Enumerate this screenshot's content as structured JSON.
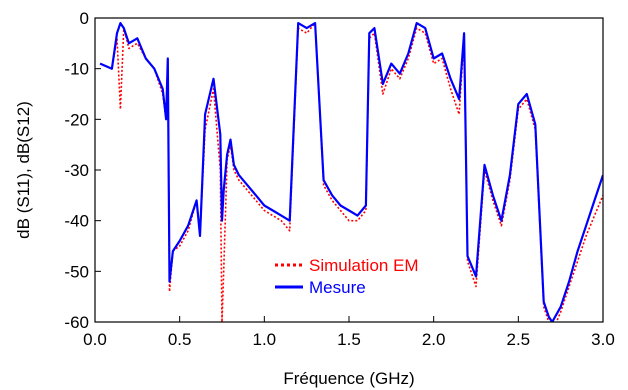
{
  "chart_data": {
    "type": "line",
    "title": "",
    "xlabel": "Fréquence (GHz)",
    "ylabel": "dB (S11), dB(S12)",
    "xlim": [
      0.0,
      3.0
    ],
    "ylim": [
      -60,
      0
    ],
    "xticks": [
      "0.0",
      "0.5",
      "1.0",
      "1.5",
      "2.0",
      "2.5",
      "3.0"
    ],
    "yticks": [
      "0",
      "-10",
      "-20",
      "-30",
      "-40",
      "-50",
      "-60"
    ],
    "grid": false,
    "legend_position": "lower-center",
    "series": [
      {
        "name": "Simulation EM",
        "color": "#ff0000",
        "style": "dotted",
        "x": [
          0.03,
          0.1,
          0.13,
          0.15,
          0.17,
          0.2,
          0.25,
          0.3,
          0.35,
          0.4,
          0.42,
          0.43,
          0.44,
          0.46,
          0.5,
          0.55,
          0.6,
          0.62,
          0.65,
          0.7,
          0.74,
          0.75,
          0.76,
          0.78,
          0.8,
          0.82,
          0.85,
          0.9,
          0.95,
          1.0,
          1.05,
          1.1,
          1.15,
          1.2,
          1.25,
          1.3,
          1.35,
          1.4,
          1.45,
          1.5,
          1.55,
          1.6,
          1.62,
          1.65,
          1.7,
          1.75,
          1.8,
          1.85,
          1.9,
          1.95,
          2.0,
          2.05,
          2.1,
          2.15,
          2.18,
          2.2,
          2.25,
          2.3,
          2.35,
          2.4,
          2.45,
          2.5,
          2.55,
          2.6,
          2.65,
          2.68,
          2.7,
          2.75,
          2.8,
          2.85,
          2.9,
          2.95,
          3.0
        ],
        "y": [
          -9,
          -10,
          -4,
          -18,
          -2,
          -6,
          -5,
          -8,
          -10,
          -15,
          -20,
          -8,
          -54,
          -46,
          -45,
          -42,
          -36,
          -43,
          -22,
          -14,
          -30,
          -60,
          -50,
          -28,
          -25,
          -30,
          -32,
          -34,
          -36,
          -38,
          -39,
          -40,
          -42,
          -2,
          -3,
          -1,
          -33,
          -36,
          -38,
          -40,
          -40,
          -38,
          -4,
          -3,
          -15,
          -10,
          -12,
          -8,
          -2,
          -3,
          -9,
          -8,
          -14,
          -19,
          -4,
          -48,
          -53,
          -30,
          -36,
          -41,
          -32,
          -18,
          -16,
          -22,
          -57,
          -60,
          -62,
          -58,
          -53,
          -48,
          -43,
          -39,
          -35
        ]
      },
      {
        "name": "Mesure",
        "color": "#0000ff",
        "style": "solid",
        "x": [
          0.03,
          0.1,
          0.13,
          0.15,
          0.17,
          0.2,
          0.25,
          0.3,
          0.35,
          0.4,
          0.42,
          0.43,
          0.44,
          0.46,
          0.5,
          0.55,
          0.6,
          0.62,
          0.65,
          0.7,
          0.74,
          0.75,
          0.76,
          0.78,
          0.8,
          0.82,
          0.85,
          0.9,
          0.95,
          1.0,
          1.05,
          1.1,
          1.15,
          1.2,
          1.25,
          1.3,
          1.35,
          1.4,
          1.45,
          1.5,
          1.55,
          1.6,
          1.62,
          1.65,
          1.7,
          1.75,
          1.8,
          1.85,
          1.9,
          1.95,
          2.0,
          2.05,
          2.1,
          2.15,
          2.18,
          2.2,
          2.25,
          2.3,
          2.35,
          2.4,
          2.45,
          2.5,
          2.55,
          2.6,
          2.65,
          2.68,
          2.7,
          2.75,
          2.8,
          2.85,
          2.9,
          2.95,
          3.0
        ],
        "y": [
          -9,
          -10,
          -3,
          -1,
          -2,
          -5,
          -4,
          -8,
          -10,
          -14,
          -20,
          -8,
          -52,
          -46,
          -44,
          -41,
          -36,
          -43,
          -19,
          -12,
          -23,
          -40,
          -34,
          -27,
          -24,
          -29,
          -31,
          -33,
          -35,
          -37,
          -38,
          -39,
          -40,
          -1,
          -2,
          -1,
          -32,
          -35,
          -37,
          -38,
          -39,
          -37,
          -3,
          -2,
          -13,
          -9,
          -11,
          -7,
          -1,
          -2,
          -8,
          -7,
          -12,
          -16,
          -3,
          -47,
          -51,
          -29,
          -35,
          -40,
          -31,
          -17,
          -15,
          -21,
          -56,
          -59,
          -60,
          -57,
          -52,
          -46,
          -41,
          -36,
          -31
        ]
      }
    ]
  }
}
